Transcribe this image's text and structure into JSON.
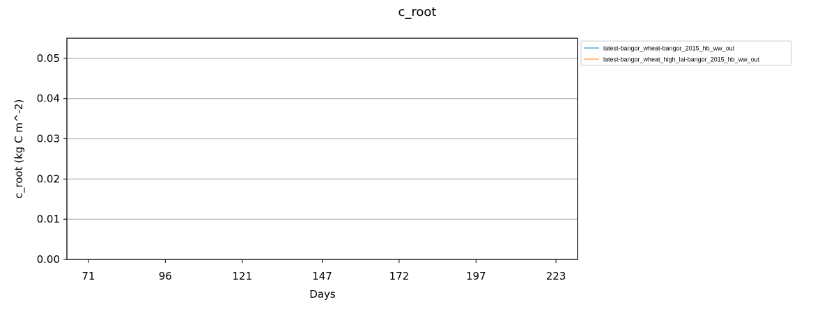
{
  "chart_data": {
    "type": "line",
    "title": "c_root",
    "xlabel": "Days",
    "ylabel": "c_root (kg C m^-2)",
    "x_ticks": [
      71,
      96,
      121,
      147,
      172,
      197,
      223
    ],
    "y_ticks": [
      0.0,
      0.01,
      0.02,
      0.03,
      0.04,
      0.05
    ],
    "y_tick_labels": [
      "0.00",
      "0.01",
      "0.02",
      "0.03",
      "0.04",
      "0.05"
    ],
    "xlim": [
      64,
      230
    ],
    "ylim": [
      0,
      0.055
    ],
    "grid": "horizontal",
    "legend_placement": "outside upper-right",
    "series": [
      {
        "name": "latest-bangor_wheat-bangor_2015_hb_ww_out",
        "color": "#1f77b4",
        "x": [],
        "values": []
      },
      {
        "name": "latest-bangor_wheat_high_lai-bangor_2015_hb_ww_out",
        "color": "#ff7f0e",
        "x": [],
        "values": []
      }
    ]
  }
}
